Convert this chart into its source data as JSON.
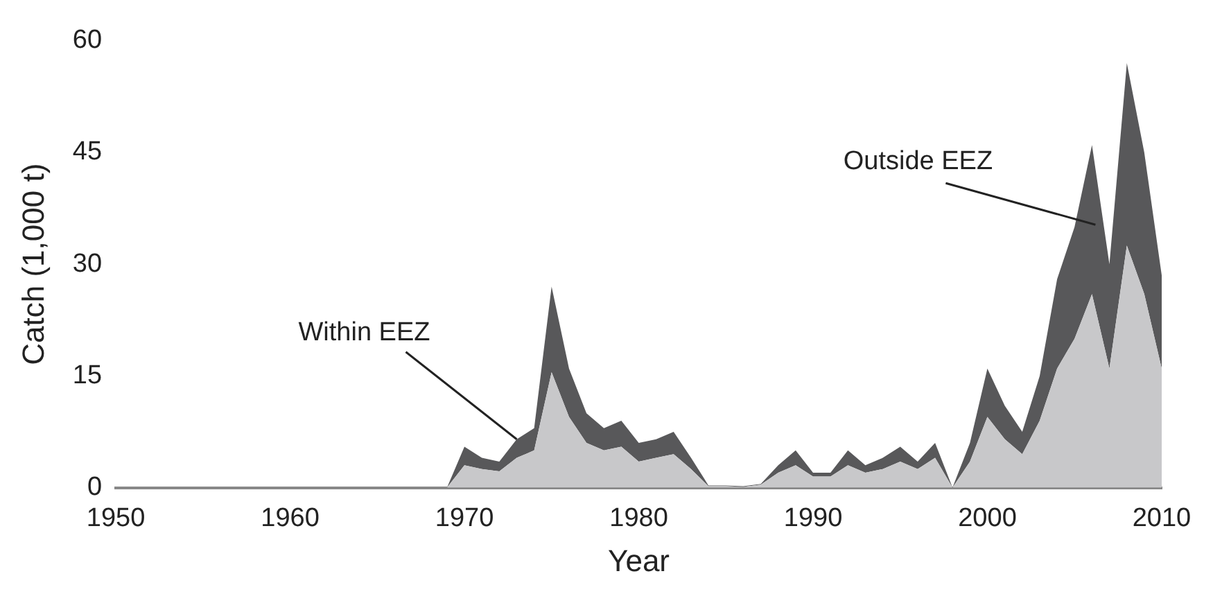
{
  "chart_data": {
    "type": "area",
    "stacked": true,
    "xlabel": "Year",
    "ylabel": "Catch (1,000 t)",
    "x": [
      1950,
      1951,
      1952,
      1953,
      1954,
      1955,
      1956,
      1957,
      1958,
      1959,
      1960,
      1961,
      1962,
      1963,
      1964,
      1965,
      1966,
      1967,
      1968,
      1969,
      1970,
      1971,
      1972,
      1973,
      1974,
      1975,
      1976,
      1977,
      1978,
      1979,
      1980,
      1981,
      1982,
      1983,
      1984,
      1985,
      1986,
      1987,
      1988,
      1989,
      1990,
      1991,
      1992,
      1993,
      1994,
      1995,
      1996,
      1997,
      1998,
      1999,
      2000,
      2001,
      2002,
      2003,
      2004,
      2005,
      2006,
      2007,
      2008,
      2009,
      2010
    ],
    "series": [
      {
        "color": "#c8c8ca",
        "values": [
          0,
          0,
          0,
          0,
          0,
          0,
          0,
          0,
          0,
          0,
          0,
          0,
          0,
          0,
          0,
          0,
          0,
          0,
          0,
          0,
          3,
          2.5,
          2.2,
          4,
          5,
          15.5,
          9.5,
          6,
          5,
          5.5,
          3.5,
          4,
          4.5,
          2.5,
          0.2,
          0.2,
          0.1,
          0.4,
          2,
          3,
          1.5,
          1.5,
          3,
          2,
          2.5,
          3.5,
          2.5,
          4,
          0,
          3.5,
          9.5,
          6.5,
          4.5,
          9,
          16,
          20,
          26,
          16,
          32.5,
          26,
          16
        ]
      },
      {
        "color": "#58585a",
        "values": [
          0,
          0,
          0,
          0,
          0,
          0,
          0,
          0,
          0,
          0,
          0,
          0,
          0,
          0,
          0,
          0,
          0,
          0,
          0,
          0,
          2.5,
          1.5,
          1.3,
          2.5,
          3,
          11.5,
          6.5,
          4,
          3,
          3.5,
          2.5,
          2.5,
          3,
          1.5,
          0.1,
          0.1,
          0.1,
          0.1,
          1,
          2,
          0.5,
          0.5,
          2,
          1,
          1.5,
          2,
          1,
          2,
          0,
          2.5,
          6.5,
          4.5,
          3,
          6,
          12,
          15,
          20,
          14,
          24.5,
          19,
          12.5
        ]
      }
    ],
    "xlim": [
      1950,
      2010
    ],
    "xticks": [
      1950,
      1960,
      1970,
      1980,
      1990,
      2000,
      2010
    ],
    "ylim": [
      0,
      60
    ],
    "yticks": [
      0,
      15,
      30,
      45,
      60
    ],
    "grid": false,
    "legend": false,
    "annotations": [
      {
        "text": "Within EEZ",
        "x": 1973,
        "y": 6.5
      },
      "Outside EEZ"
    ]
  }
}
